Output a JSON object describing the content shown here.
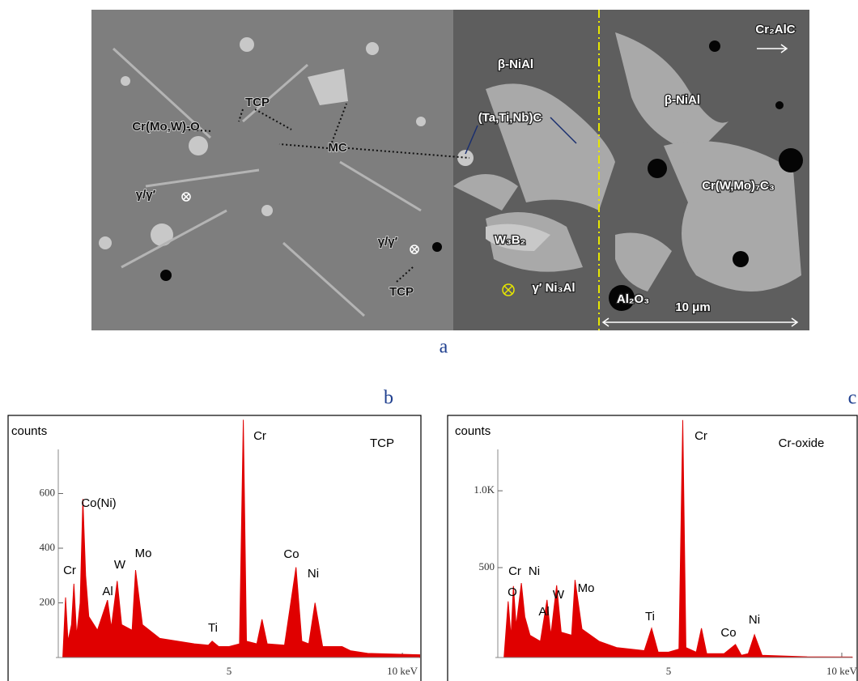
{
  "micrograph": {
    "caption": "a",
    "labels": [
      "Cr₂AlC",
      "β-NiAl",
      "β-NiAl",
      "TCP",
      "Cr(Mo,W)-O",
      "(Ta,Ti,Nb)C",
      "MC",
      "Cr(W,Mo)₇C₃",
      "γ/γ′",
      "W₃B₂",
      "γ/γ′",
      "TCP",
      "γ′ Ni₃Al",
      "Al₂O₃",
      "10 μm"
    ]
  },
  "chart_data": [
    {
      "type": "area",
      "label": "b",
      "y_label": "counts",
      "annotation": "TCP",
      "color": "#e00000",
      "peak_labels": [
        "Cr",
        "Co(Ni)",
        "Al",
        "W",
        "Mo",
        "Ti",
        "Cr",
        "Co",
        "Ni"
      ],
      "x": [
        0.2,
        0.28,
        0.35,
        0.45,
        0.52,
        0.6,
        0.7,
        0.78,
        0.86,
        0.95,
        1.2,
        1.49,
        1.6,
        1.77,
        1.9,
        2.2,
        2.3,
        2.5,
        3.0,
        3.5,
        4.0,
        4.4,
        4.51,
        4.7,
        5.0,
        5.3,
        5.41,
        5.5,
        5.8,
        5.95,
        6.1,
        6.6,
        6.93,
        7.1,
        7.3,
        7.48,
        7.7,
        8.26,
        8.5,
        9.0,
        10.5
      ],
      "values": [
        0,
        220,
        60,
        120,
        270,
        80,
        200,
        580,
        300,
        150,
        100,
        210,
        110,
        280,
        120,
        100,
        320,
        120,
        70,
        60,
        50,
        45,
        60,
        40,
        40,
        50,
        870,
        60,
        50,
        140,
        50,
        45,
        330,
        60,
        50,
        200,
        40,
        40,
        25,
        15,
        10
      ],
      "xlim": [
        0,
        10.5
      ],
      "ylim": [
        0,
        880
      ],
      "xticks": [
        5,
        {
          "value": 10,
          "label": "10 keV"
        }
      ],
      "yticks": [
        200,
        400,
        600
      ]
    },
    {
      "type": "area",
      "label": "c",
      "y_label": "counts",
      "annotation": "Cr-oxide",
      "color": "#e00000",
      "peak_labels": [
        "O",
        "Cr",
        "Ni",
        "Al",
        "W",
        "Mo",
        "Ti",
        "Cr",
        "Co",
        "Ni"
      ],
      "x": [
        0.25,
        0.37,
        0.45,
        0.52,
        0.6,
        0.75,
        0.85,
        1.0,
        1.3,
        1.49,
        1.6,
        1.77,
        1.9,
        2.2,
        2.3,
        2.5,
        3.0,
        3.5,
        4.3,
        4.51,
        4.7,
        5.0,
        5.3,
        5.41,
        5.5,
        5.8,
        5.95,
        6.1,
        6.6,
        6.93,
        7.1,
        7.3,
        7.48,
        7.7,
        8.3,
        9.0,
        10.3
      ],
      "values": [
        -85,
        280,
        50,
        380,
        120,
        400,
        180,
        60,
        20,
        290,
        60,
        385,
        80,
        60,
        420,
        100,
        20,
        -20,
        -40,
        105,
        -50,
        -50,
        -30,
        1460,
        -20,
        -50,
        105,
        -60,
        -60,
        0,
        -70,
        -60,
        63,
        -70,
        -75,
        -80,
        -82
      ],
      "xlim": [
        0,
        10.3
      ],
      "ylim": [
        -85,
        1480
      ],
      "xticks": [
        5,
        {
          "value": 10,
          "label": "10 keV"
        }
      ],
      "yticks": [
        500,
        {
          "value": 1000,
          "label": "1.0K"
        }
      ]
    }
  ]
}
